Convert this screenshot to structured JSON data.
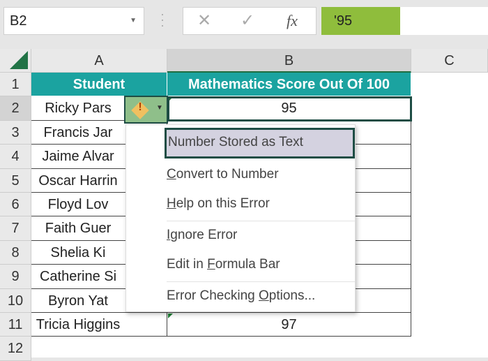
{
  "formula_bar": {
    "name_box": "B2",
    "cancel_icon": "✕",
    "enter_icon": "✓",
    "fx_label": "fx",
    "value": "'95"
  },
  "columns": [
    "A",
    "B",
    "C"
  ],
  "rows": [
    "1",
    "2",
    "3",
    "4",
    "5",
    "6",
    "7",
    "8",
    "9",
    "10",
    "11",
    "12"
  ],
  "headers": {
    "student": "Student",
    "score": "Mathematics Score Out Of 100"
  },
  "students": [
    "Ricky Pars",
    "Francis Jar",
    "Jaime Alvar",
    "Oscar Harrin",
    "Floyd Lov",
    "Faith Guer",
    "Shelia Ki",
    "Catherine Si",
    "Byron Yat",
    "Tricia Higgins"
  ],
  "scores": {
    "row2": "95",
    "row11": "97"
  },
  "error_menu": {
    "title": "Number Stored as Text",
    "items": [
      {
        "pre": "",
        "u": "C",
        "post": "onvert to Number"
      },
      {
        "pre": "",
        "u": "H",
        "post": "elp on this Error"
      },
      {
        "pre": "",
        "u": "I",
        "post": "gnore Error"
      },
      {
        "pre": "Edit in ",
        "u": "F",
        "post": "ormula Bar"
      },
      {
        "pre": "Error Checking ",
        "u": "O",
        "post": "ptions..."
      }
    ]
  },
  "colors": {
    "header_fill": "#1ba3a0",
    "formula_highlight": "#8fbd3c",
    "excel_green": "#217346"
  }
}
